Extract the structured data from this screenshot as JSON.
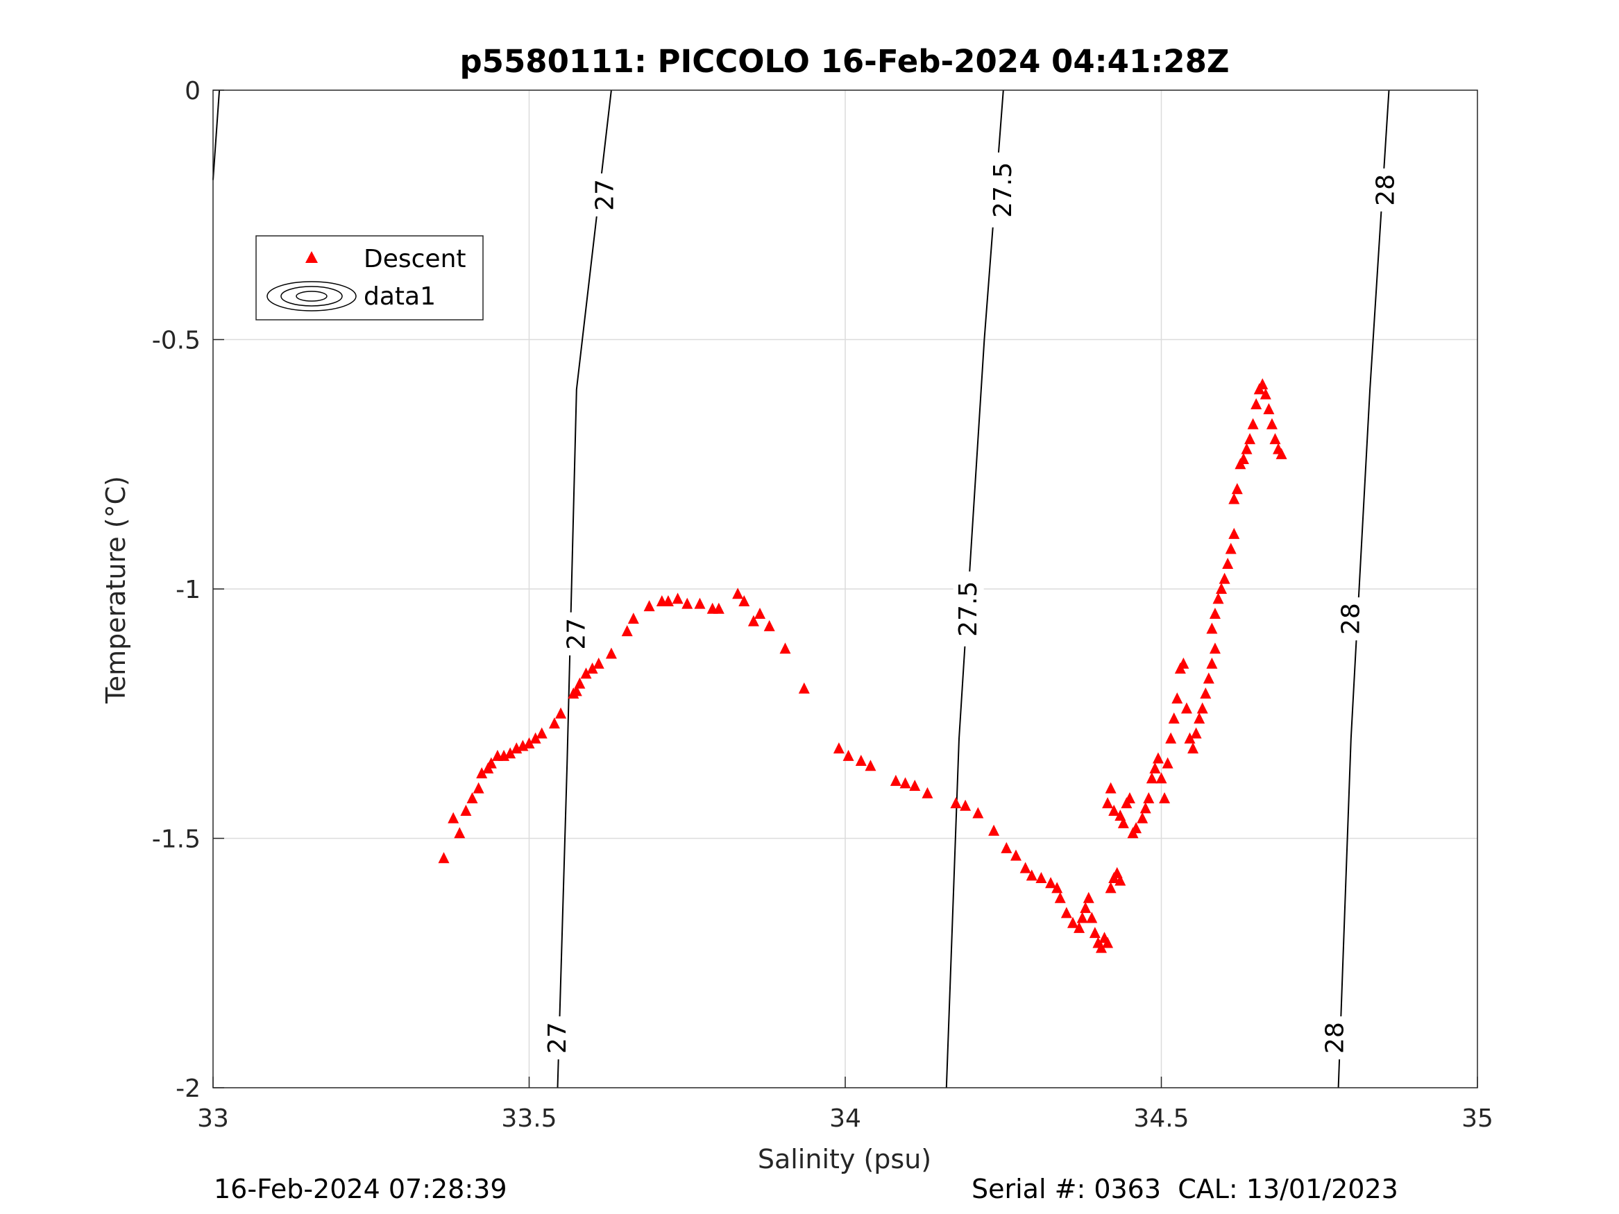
{
  "chart_data": {
    "type": "scatter",
    "title": "p5580111: PICCOLO 16-Feb-2024 04:41:28Z",
    "xlabel": "Salinity (psu)",
    "ylabel": "Temperature (°C)",
    "xlim": [
      33,
      35
    ],
    "ylim": [
      -2,
      0
    ],
    "xticks": [
      33,
      33.5,
      34,
      34.5,
      35
    ],
    "xtick_labels": [
      "33",
      "33.5",
      "34",
      "34.5",
      "35"
    ],
    "yticks": [
      0,
      -0.5,
      -1,
      -1.5,
      -2
    ],
    "ytick_labels": [
      "0",
      "-0.5",
      "-1",
      "-1.5",
      "-2"
    ],
    "grid": true,
    "legend": {
      "placement": "top-left",
      "entries": [
        {
          "label": "Descent",
          "marker": "triangle",
          "color": "#ff0000"
        },
        {
          "label": "data1",
          "marker": "contour",
          "color": "#000000"
        }
      ]
    },
    "series": [
      {
        "name": "Descent",
        "color": "#ff0000",
        "marker": "triangle",
        "points": [
          [
            33.365,
            -1.54
          ],
          [
            33.38,
            -1.46
          ],
          [
            33.39,
            -1.49
          ],
          [
            33.4,
            -1.445
          ],
          [
            33.41,
            -1.42
          ],
          [
            33.42,
            -1.4
          ],
          [
            33.425,
            -1.37
          ],
          [
            33.435,
            -1.36
          ],
          [
            33.44,
            -1.35
          ],
          [
            33.45,
            -1.335
          ],
          [
            33.46,
            -1.335
          ],
          [
            33.47,
            -1.33
          ],
          [
            33.48,
            -1.32
          ],
          [
            33.49,
            -1.315
          ],
          [
            33.5,
            -1.31
          ],
          [
            33.51,
            -1.3
          ],
          [
            33.52,
            -1.29
          ],
          [
            33.54,
            -1.27
          ],
          [
            33.55,
            -1.25
          ],
          [
            33.57,
            -1.21
          ],
          [
            33.575,
            -1.205
          ],
          [
            33.58,
            -1.19
          ],
          [
            33.59,
            -1.17
          ],
          [
            33.6,
            -1.16
          ],
          [
            33.61,
            -1.15
          ],
          [
            33.63,
            -1.13
          ],
          [
            33.655,
            -1.085
          ],
          [
            33.665,
            -1.06
          ],
          [
            33.69,
            -1.035
          ],
          [
            33.71,
            -1.025
          ],
          [
            33.72,
            -1.025
          ],
          [
            33.735,
            -1.02
          ],
          [
            33.75,
            -1.03
          ],
          [
            33.77,
            -1.03
          ],
          [
            33.79,
            -1.04
          ],
          [
            33.8,
            -1.04
          ],
          [
            33.83,
            -1.01
          ],
          [
            33.84,
            -1.025
          ],
          [
            33.855,
            -1.065
          ],
          [
            33.865,
            -1.05
          ],
          [
            33.88,
            -1.075
          ],
          [
            33.905,
            -1.12
          ],
          [
            33.935,
            -1.2
          ],
          [
            33.99,
            -1.32
          ],
          [
            34.005,
            -1.335
          ],
          [
            34.025,
            -1.345
          ],
          [
            34.04,
            -1.355
          ],
          [
            34.08,
            -1.385
          ],
          [
            34.095,
            -1.39
          ],
          [
            34.11,
            -1.395
          ],
          [
            34.13,
            -1.41
          ],
          [
            34.175,
            -1.43
          ],
          [
            34.19,
            -1.435
          ],
          [
            34.21,
            -1.45
          ],
          [
            34.235,
            -1.485
          ],
          [
            34.255,
            -1.52
          ],
          [
            34.27,
            -1.535
          ],
          [
            34.285,
            -1.56
          ],
          [
            34.295,
            -1.575
          ],
          [
            34.31,
            -1.58
          ],
          [
            34.325,
            -1.59
          ],
          [
            34.335,
            -1.6
          ],
          [
            34.34,
            -1.62
          ],
          [
            34.35,
            -1.65
          ],
          [
            34.36,
            -1.67
          ],
          [
            34.37,
            -1.68
          ],
          [
            34.375,
            -1.66
          ],
          [
            34.38,
            -1.64
          ],
          [
            34.385,
            -1.62
          ],
          [
            34.39,
            -1.66
          ],
          [
            34.395,
            -1.69
          ],
          [
            34.4,
            -1.71
          ],
          [
            34.405,
            -1.72
          ],
          [
            34.41,
            -1.7
          ],
          [
            34.415,
            -1.71
          ],
          [
            34.42,
            -1.6
          ],
          [
            34.425,
            -1.58
          ],
          [
            34.43,
            -1.57
          ],
          [
            34.435,
            -1.585
          ],
          [
            34.415,
            -1.43
          ],
          [
            34.42,
            -1.4
          ],
          [
            34.425,
            -1.445
          ],
          [
            34.435,
            -1.455
          ],
          [
            34.44,
            -1.47
          ],
          [
            34.445,
            -1.43
          ],
          [
            34.45,
            -1.42
          ],
          [
            34.455,
            -1.49
          ],
          [
            34.46,
            -1.48
          ],
          [
            34.47,
            -1.46
          ],
          [
            34.475,
            -1.44
          ],
          [
            34.48,
            -1.42
          ],
          [
            34.485,
            -1.38
          ],
          [
            34.49,
            -1.36
          ],
          [
            34.495,
            -1.34
          ],
          [
            34.5,
            -1.38
          ],
          [
            34.505,
            -1.42
          ],
          [
            34.51,
            -1.35
          ],
          [
            34.515,
            -1.3
          ],
          [
            34.52,
            -1.26
          ],
          [
            34.525,
            -1.22
          ],
          [
            34.53,
            -1.16
          ],
          [
            34.535,
            -1.15
          ],
          [
            34.54,
            -1.24
          ],
          [
            34.545,
            -1.3
          ],
          [
            34.55,
            -1.32
          ],
          [
            34.555,
            -1.29
          ],
          [
            34.56,
            -1.26
          ],
          [
            34.565,
            -1.24
          ],
          [
            34.57,
            -1.21
          ],
          [
            34.575,
            -1.18
          ],
          [
            34.58,
            -1.15
          ],
          [
            34.585,
            -1.12
          ],
          [
            34.58,
            -1.08
          ],
          [
            34.585,
            -1.05
          ],
          [
            34.59,
            -1.02
          ],
          [
            34.595,
            -1.0
          ],
          [
            34.6,
            -0.98
          ],
          [
            34.605,
            -0.95
          ],
          [
            34.61,
            -0.92
          ],
          [
            34.615,
            -0.89
          ],
          [
            34.615,
            -0.82
          ],
          [
            34.62,
            -0.8
          ],
          [
            34.625,
            -0.75
          ],
          [
            34.63,
            -0.74
          ],
          [
            34.635,
            -0.72
          ],
          [
            34.64,
            -0.7
          ],
          [
            34.645,
            -0.67
          ],
          [
            34.65,
            -0.63
          ],
          [
            34.655,
            -0.6
          ],
          [
            34.66,
            -0.59
          ],
          [
            34.665,
            -0.61
          ],
          [
            34.67,
            -0.64
          ],
          [
            34.675,
            -0.67
          ],
          [
            34.68,
            -0.7
          ],
          [
            34.685,
            -0.72
          ],
          [
            34.69,
            -0.73
          ]
        ]
      }
    ],
    "contours": [
      {
        "label": "27",
        "path": [
          [
            33.545,
            -2.0
          ],
          [
            33.56,
            -1.35
          ],
          [
            33.575,
            -0.6
          ],
          [
            33.63,
            0
          ]
        ]
      },
      {
        "label": "27.5",
        "path": [
          [
            34.16,
            -2.0
          ],
          [
            34.18,
            -1.3
          ],
          [
            34.22,
            -0.5
          ],
          [
            34.25,
            0
          ]
        ]
      },
      {
        "label": "28",
        "path": [
          [
            34.78,
            -2.0
          ],
          [
            34.8,
            -1.3
          ],
          [
            34.83,
            -0.6
          ],
          [
            34.86,
            0
          ]
        ]
      },
      {
        "label": "",
        "path": [
          [
            33.0,
            -0.18
          ],
          [
            33.01,
            0
          ]
        ]
      }
    ],
    "contour_labels": [
      {
        "text": "27",
        "at": [
          33.62,
          -0.21
        ]
      },
      {
        "text": "27",
        "at": [
          33.575,
          -1.09
        ]
      },
      {
        "text": "27",
        "at": [
          33.545,
          -1.9
        ]
      },
      {
        "text": "27.5",
        "at": [
          34.25,
          -0.2
        ]
      },
      {
        "text": "27.5",
        "at": [
          34.195,
          -1.04
        ]
      },
      {
        "text": "28",
        "at": [
          34.855,
          -0.2
        ]
      },
      {
        "text": "28",
        "at": [
          34.8,
          -1.06
        ]
      },
      {
        "text": "28",
        "at": [
          34.775,
          -1.9
        ]
      }
    ]
  },
  "footer": {
    "left": "16-Feb-2024 07:28:39",
    "right": "Serial #: 0363  CAL: 13/01/2023"
  }
}
